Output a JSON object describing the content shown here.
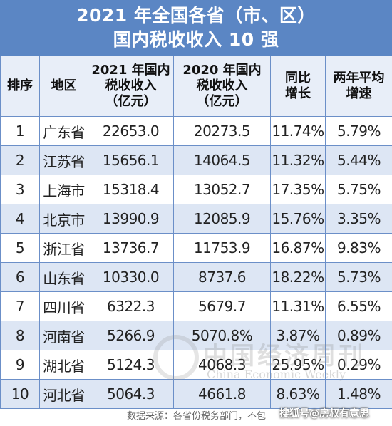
{
  "title": {
    "line1": "2021 年全国各省（市、区）",
    "line2": "国内税收收入 10 强"
  },
  "table": {
    "headers": [
      "排序",
      "地区",
      "2021 年国内税收收入（亿元）",
      "2020 年国内税收收入（亿元）",
      "同比增长",
      "两年平均增速"
    ],
    "header_lines": [
      [
        "排序"
      ],
      [
        "地区"
      ],
      [
        "2021 年国内",
        "税收收入",
        "（亿元）"
      ],
      [
        "2020 年国内",
        "税收收入",
        "（亿元）"
      ],
      [
        "同比",
        "增长"
      ],
      [
        "两年平均",
        "增速"
      ]
    ],
    "rows": [
      [
        "1",
        "广东省",
        "22653.0",
        "20273.5",
        "11.74%",
        "5.79%"
      ],
      [
        "2",
        "江苏省",
        "15656.1",
        "14064.5",
        "11.32%",
        "5.44%"
      ],
      [
        "3",
        "上海市",
        "15318.4",
        "13052.7",
        "17.35%",
        "5.75%"
      ],
      [
        "4",
        "北京市",
        "13990.9",
        "12085.9",
        "15.76%",
        "3.35%"
      ],
      [
        "5",
        "浙江省",
        "13736.7",
        "11753.9",
        "16.87%",
        "9.83%"
      ],
      [
        "6",
        "山东省",
        "10330.0",
        "8737.6",
        "18.22%",
        "5.73%"
      ],
      [
        "7",
        "四川省",
        "6322.3",
        "5679.7",
        "11.31%",
        "6.55%"
      ],
      [
        "8",
        "河南省",
        "5266.9",
        "5070.8%",
        "3.87%",
        "0.89%"
      ],
      [
        "9",
        "湖北省",
        "5124.3",
        "4068.3",
        "25.95%",
        "0.29%"
      ],
      [
        "10",
        "河北省",
        "5064.3",
        "4661.8",
        "8.63%",
        "1.48%"
      ]
    ]
  },
  "watermark": {
    "cn": "中国经济周刊",
    "en": "China Economic Weekly"
  },
  "footer": {
    "source": "数据来源：各省份税务部门，不包",
    "overlay": "搜狐号@房叔有意思"
  },
  "colors": {
    "title_bg": "#5b86c4",
    "header_bg": "#e8eef8",
    "row_alt_bg": "#dde6f4",
    "border": "#6b8fc8"
  }
}
